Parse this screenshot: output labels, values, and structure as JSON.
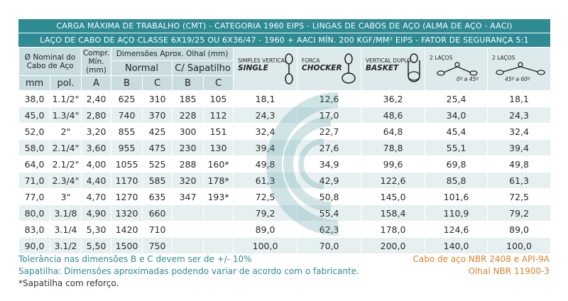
{
  "header": {
    "title": "CARGA MÁXIMA DE TRABALHO (CMT) - CATEGORIA 1960 EIPS - LINGAS DE CABOS DE AÇO (ALMA DE AÇO - AACI)",
    "subtitle": "LAÇO DE CABO DE AÇO CLASSE 6X19/25 OU 6X36/47 - 1960 + AACI MÍN. 200 KGF/MM² EIPS - FATOR DE SEGURANÇA 5:1"
  },
  "columns": {
    "nominal": "Ø Nominal do Cabo de Aço",
    "compr": "Compr. Mín. (mm)",
    "dims": "Dimensões Aprox. Olhal (mm)",
    "normal": "Normal",
    "sapatilho": "C/ Sapatilho",
    "mm": "mm",
    "pol": "pol.",
    "a": "A",
    "b": "B",
    "c": "C",
    "b2": "B",
    "c2": "C",
    "single_top": "SIMPLES VERTICAL",
    "single": "SINGLE",
    "choker_top": "FORCA",
    "choker": "CHOCKER",
    "basket_top": "VERTICAL DUPLO",
    "basket": "BASKET",
    "two45_top": "2 LAÇOS",
    "two45_angle": "0º a 45º",
    "two60_top": "2 LAÇOS",
    "two60_angle": "45º a 60º"
  },
  "rows": [
    {
      "mm": "38,0",
      "pol": "1.1/2\"",
      "a": "2,40",
      "b": "625",
      "c": "310",
      "sb": "185",
      "sc": "105",
      "single": "18,1",
      "choker": "12,6",
      "basket": "36,2",
      "two45": "25,4",
      "two60": "18,1"
    },
    {
      "mm": "45,0",
      "pol": "1.3/4\"",
      "a": "2,80",
      "b": "740",
      "c": "370",
      "sb": "228",
      "sc": "112",
      "single": "24,3",
      "choker": "17,0",
      "basket": "48,6",
      "two45": "34,0",
      "two60": "24,3"
    },
    {
      "mm": "52,0",
      "pol": "2\"",
      "a": "3,20",
      "b": "855",
      "c": "425",
      "sb": "300",
      "sc": "151",
      "single": "32,4",
      "choker": "22,7",
      "basket": "64,8",
      "two45": "45,4",
      "two60": "32,4"
    },
    {
      "mm": "58,0",
      "pol": "2.1/4\"",
      "a": "3,60",
      "b": "955",
      "c": "475",
      "sb": "230",
      "sc": "130",
      "single": "39,4",
      "choker": "27,6",
      "basket": "78,8",
      "two45": "55,1",
      "two60": "39,4"
    },
    {
      "mm": "64,0",
      "pol": "2.1/2\"",
      "a": "4,00",
      "b": "1055",
      "c": "525",
      "sb": "288",
      "sc": "160*",
      "single": "49,8",
      "choker": "34,9",
      "basket": "99,6",
      "two45": "69,8",
      "two60": "49,8"
    },
    {
      "mm": "71,0",
      "pol": "2.3/4\"",
      "a": "4,40",
      "b": "1170",
      "c": "585",
      "sb": "320",
      "sc": "178*",
      "single": "61,3",
      "choker": "42,9",
      "basket": "122,6",
      "two45": "85,8",
      "two60": "61,3"
    },
    {
      "mm": "77,0",
      "pol": "3\"",
      "a": "4,70",
      "b": "1270",
      "c": "635",
      "sb": "347",
      "sc": "193*",
      "single": "72,5",
      "choker": "50,8",
      "basket": "145,0",
      "two45": "101,6",
      "two60": "72,5"
    },
    {
      "mm": "80,0",
      "pol": "3.1/8",
      "a": "4,90",
      "b": "1320",
      "c": "660",
      "sb": "",
      "sc": "",
      "single": "79,2",
      "choker": "55,4",
      "basket": "158,4",
      "two45": "110,9",
      "two60": "79,2"
    },
    {
      "mm": "83,0",
      "pol": "3.1/4",
      "a": "5,30",
      "b": "1420",
      "c": "710",
      "sb": "",
      "sc": "",
      "single": "89,0",
      "choker": "62,3",
      "basket": "178,0",
      "two45": "124,6",
      "two60": "89,0"
    },
    {
      "mm": "90,0",
      "pol": "3.1/2",
      "a": "5,50",
      "b": "1500",
      "c": "750",
      "sb": "",
      "sc": "",
      "single": "100,0",
      "choker": "70,0",
      "basket": "200,0",
      "two45": "140,0",
      "two60": "100,0"
    }
  ],
  "footer": {
    "tolerance": "Tolerância nas dimensões B e C devem ser de +/- 10%",
    "sapatilha_note": "Sapatilha: Dimensões aproximadas podendo variar de acordo com o fabricante.",
    "reinforced_note": "*Sapatilha com reforço.",
    "norm1": "Cabo de aço NBR 2408 e API-9A",
    "norm2": "Olhal NBR 11900-3"
  },
  "colors": {
    "header_bar": "#2e8a93",
    "header_cells": "#c9dde0",
    "stripe": "#e7f0f1",
    "teal_text": "#2e8a93",
    "orange_text": "#d9822b"
  }
}
